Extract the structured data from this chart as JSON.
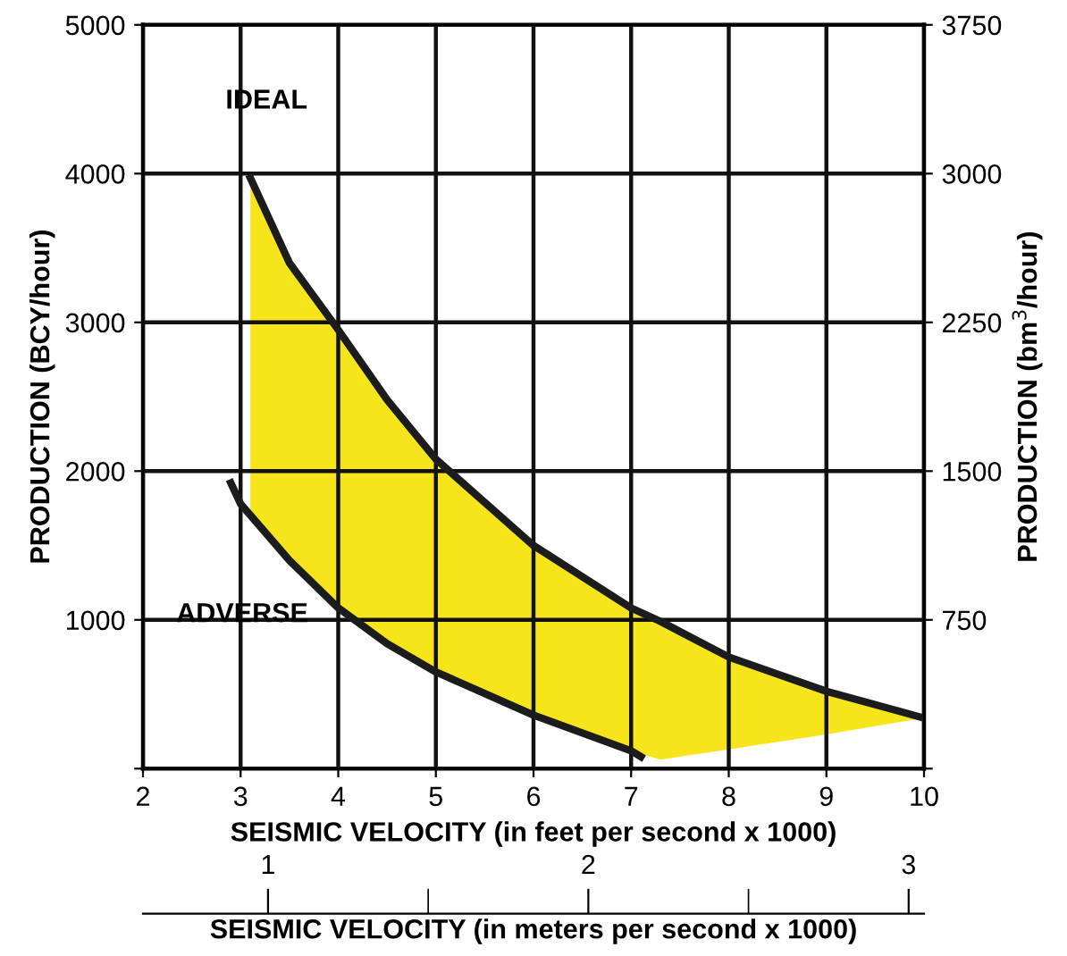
{
  "chart_data": {
    "type": "line",
    "xlabel": "SEISMIC VELOCITY (in feet per second x 1000)",
    "ylabel": "PRODUCTION (BCY/hour)",
    "y2label": "PRODUCTION (bm$^{3}$/hour)",
    "x2label": "SEISMIC VELOCITY (in meters per second x 1000)",
    "xlim": [
      2,
      10
    ],
    "xticks": [
      2,
      3,
      4,
      5,
      6,
      7,
      8,
      9,
      10
    ],
    "ylim": [
      0,
      5000
    ],
    "yticks": [
      {
        "value": 0,
        "label": null
      },
      1000,
      2000,
      3000,
      4000,
      5000
    ],
    "y2lim": [
      0,
      3750
    ],
    "y2ticks": [
      {
        "value": 0,
        "label": null
      },
      750,
      1500,
      2250,
      3000,
      3750
    ],
    "x2lim": [
      0.6096,
      3.048
    ],
    "x2ticks": [
      1,
      2,
      3
    ],
    "grid": true,
    "line_style": "solid",
    "marker": "none",
    "series": [
      {
        "name": "IDEAL",
        "color": "#1c1c1c",
        "x": [
          3.1,
          3.5,
          4,
          4.5,
          5,
          6,
          7,
          7.3,
          8,
          9,
          10
        ],
        "values": [
          3970,
          3400,
          2950,
          2480,
          2080,
          1500,
          1080,
          990,
          750,
          520,
          340
        ],
        "upper": [
          3970,
          3400,
          2950,
          2480,
          2080,
          1500,
          1080,
          990,
          750,
          520,
          340
        ],
        "lower": [
          1700,
          1400,
          1080,
          840,
          650,
          360,
          120,
          60,
          130,
          230,
          340
        ]
      },
      {
        "name": "ADVERSE",
        "color": "#1c1c1c",
        "x": [
          2.9,
          3,
          3.5,
          4,
          4.5,
          5,
          6,
          7,
          7.1
        ],
        "values": [
          1920,
          1780,
          1400,
          1080,
          840,
          650,
          360,
          120,
          80
        ]
      }
    ]
  }
}
